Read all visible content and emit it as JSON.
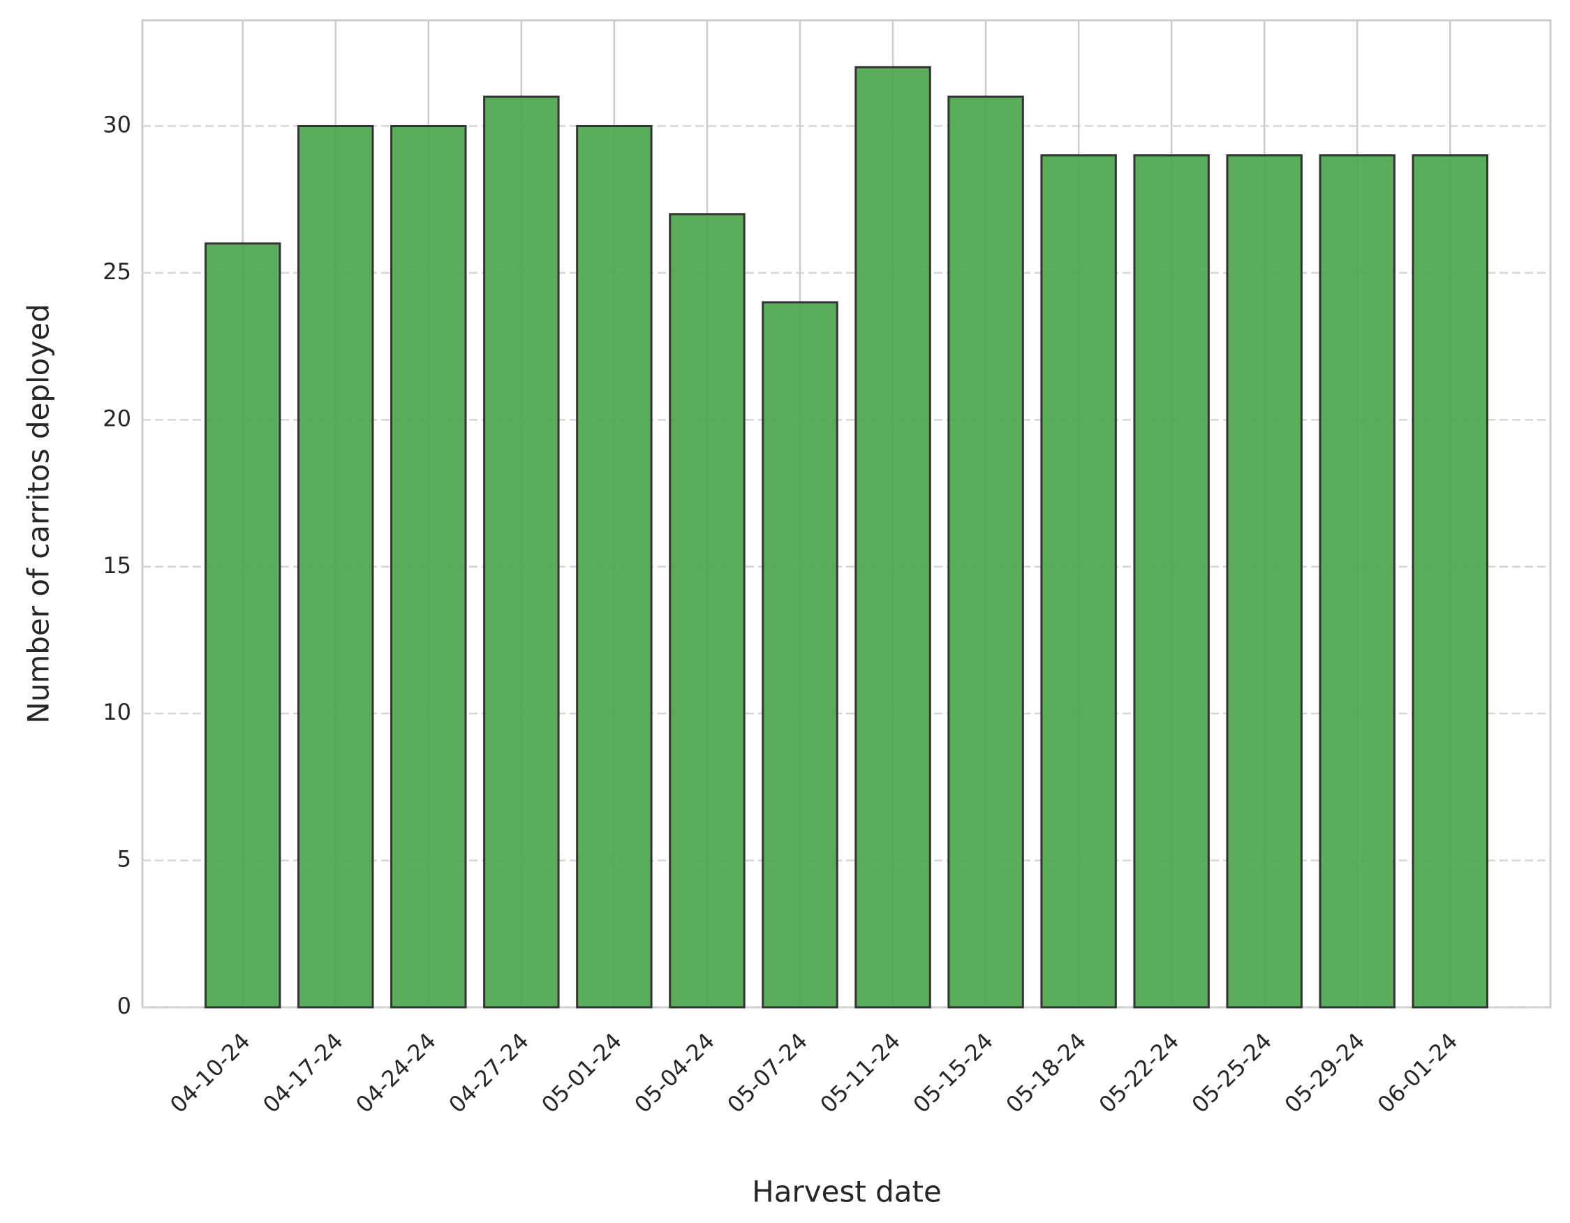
{
  "chart_data": {
    "type": "bar",
    "x_label": "Harvest date",
    "y_label": "Number of carritos deployed",
    "categories": [
      "04-10-24",
      "04-17-24",
      "04-24-24",
      "04-27-24",
      "05-01-24",
      "05-04-24",
      "05-07-24",
      "05-11-24",
      "05-15-24",
      "05-18-24",
      "05-22-24",
      "05-25-24",
      "05-29-24",
      "06-01-24"
    ],
    "values": [
      26,
      30,
      30,
      31,
      30,
      27,
      24,
      32,
      31,
      29,
      29,
      29,
      29,
      29
    ],
    "color": "#4ca64c",
    "ylim": [
      0,
      33.6
    ],
    "yticks": [
      0,
      5,
      10,
      15,
      20,
      25,
      30
    ],
    "grid": true
  }
}
